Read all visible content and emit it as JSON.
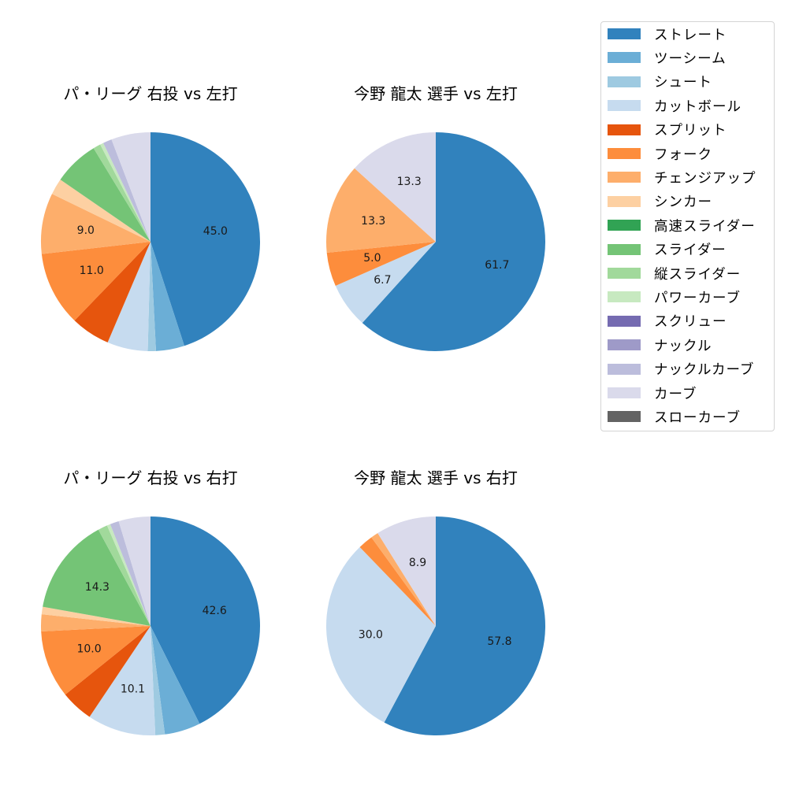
{
  "figure": {
    "background": "#ffffff"
  },
  "legend": {
    "items": [
      {
        "label": "ストレート",
        "color": "#3182bd"
      },
      {
        "label": "ツーシーム",
        "color": "#6baed6"
      },
      {
        "label": "シュート",
        "color": "#9ecae1"
      },
      {
        "label": "カットボール",
        "color": "#c6dbef"
      },
      {
        "label": "スプリット",
        "color": "#e6550d"
      },
      {
        "label": "フォーク",
        "color": "#fd8d3c"
      },
      {
        "label": "チェンジアップ",
        "color": "#fdae6b"
      },
      {
        "label": "シンカー",
        "color": "#fdd0a2"
      },
      {
        "label": "高速スライダー",
        "color": "#31a354"
      },
      {
        "label": "スライダー",
        "color": "#74c476"
      },
      {
        "label": "縦スライダー",
        "color": "#a1d99b"
      },
      {
        "label": "パワーカーブ",
        "color": "#c7e9c0"
      },
      {
        "label": "スクリュー",
        "color": "#756bb1"
      },
      {
        "label": "ナックル",
        "color": "#9e9ac8"
      },
      {
        "label": "ナックルカーブ",
        "color": "#bcbddc"
      },
      {
        "label": "カーブ",
        "color": "#dadaeb"
      },
      {
        "label": "スローカーブ",
        "color": "#636363"
      }
    ]
  },
  "chart_data": [
    {
      "type": "pie",
      "title": "パ・リーグ 右投 vs 左打",
      "start_angle": 90,
      "direction": "clockwise",
      "label_threshold": 8,
      "slices": [
        {
          "name": "ストレート",
          "value": 45.0,
          "label": "45.0"
        },
        {
          "name": "ツーシーム",
          "value": 4.2
        },
        {
          "name": "シュート",
          "value": 1.2
        },
        {
          "name": "カットボール",
          "value": 6.0
        },
        {
          "name": "スプリット",
          "value": 5.8
        },
        {
          "name": "フォーク",
          "value": 11.0,
          "label": "11.0"
        },
        {
          "name": "チェンジアップ",
          "value": 9.0,
          "label": "9.0"
        },
        {
          "name": "シンカー",
          "value": 2.4
        },
        {
          "name": "スライダー",
          "value": 6.7
        },
        {
          "name": "縦スライダー",
          "value": 1.1
        },
        {
          "name": "パワーカーブ",
          "value": 0.5
        },
        {
          "name": "ナックルカーブ",
          "value": 1.3
        },
        {
          "name": "カーブ",
          "value": 5.8
        }
      ]
    },
    {
      "type": "pie",
      "title": "今野 龍太 選手 vs 左打",
      "start_angle": 90,
      "direction": "clockwise",
      "label_threshold": 4,
      "slices": [
        {
          "name": "ストレート",
          "value": 61.7,
          "label": "61.7"
        },
        {
          "name": "カットボール",
          "value": 6.7,
          "label": "6.7"
        },
        {
          "name": "フォーク",
          "value": 5.0,
          "label": "5.0"
        },
        {
          "name": "チェンジアップ",
          "value": 13.3,
          "label": "13.3"
        },
        {
          "name": "カーブ",
          "value": 13.3,
          "label": "13.3"
        }
      ]
    },
    {
      "type": "pie",
      "title": "パ・リーグ 右投 vs 右打",
      "start_angle": 90,
      "direction": "clockwise",
      "label_threshold": 8,
      "slices": [
        {
          "name": "ストレート",
          "value": 42.6,
          "label": "42.6"
        },
        {
          "name": "ツーシーム",
          "value": 5.3
        },
        {
          "name": "シュート",
          "value": 1.4
        },
        {
          "name": "カットボール",
          "value": 10.1,
          "label": "10.1"
        },
        {
          "name": "スプリット",
          "value": 4.8
        },
        {
          "name": "フォーク",
          "value": 10.0,
          "label": "10.0"
        },
        {
          "name": "チェンジアップ",
          "value": 2.5
        },
        {
          "name": "シンカー",
          "value": 1.1
        },
        {
          "name": "スライダー",
          "value": 14.3,
          "label": "14.3"
        },
        {
          "name": "縦スライダー",
          "value": 1.4
        },
        {
          "name": "パワーカーブ",
          "value": 0.5
        },
        {
          "name": "ナックルカーブ",
          "value": 1.3
        },
        {
          "name": "カーブ",
          "value": 4.7
        }
      ]
    },
    {
      "type": "pie",
      "title": "今野 龍太 選手 vs 右打",
      "start_angle": 90,
      "direction": "clockwise",
      "label_threshold": 4,
      "slices": [
        {
          "name": "ストレート",
          "value": 57.8,
          "label": "57.8"
        },
        {
          "name": "カットボール",
          "value": 30.0,
          "label": "30.0"
        },
        {
          "name": "フォーク",
          "value": 2.2
        },
        {
          "name": "チェンジアップ",
          "value": 1.1
        },
        {
          "name": "カーブ",
          "value": 8.9,
          "label": "8.9"
        }
      ]
    }
  ]
}
